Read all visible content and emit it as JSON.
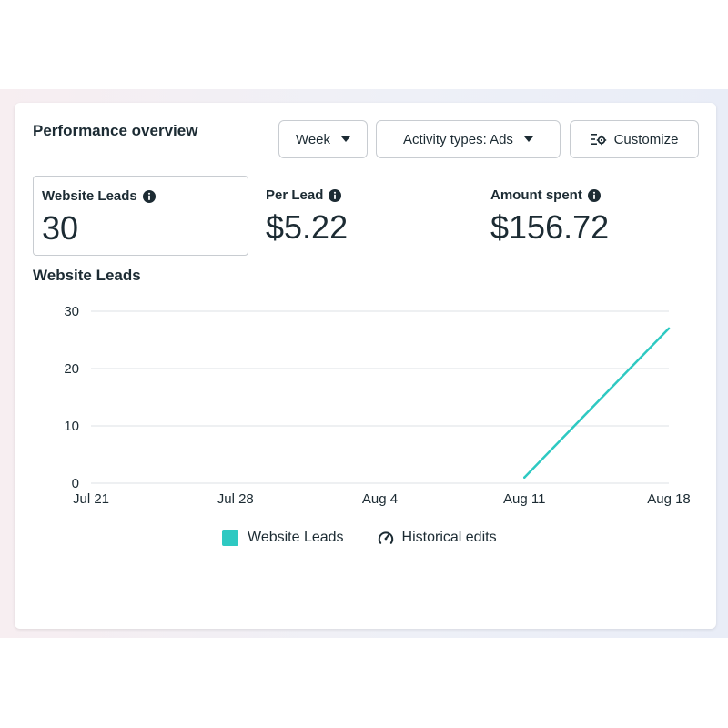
{
  "header": {
    "title": "Performance overview",
    "week_label": "Week",
    "activity_label": "Activity types: Ads",
    "customize_label": "Customize"
  },
  "metrics": [
    {
      "label": "Website Leads",
      "value": "30"
    },
    {
      "label": "Per Lead",
      "value": "$5.22"
    },
    {
      "label": "Amount spent",
      "value": "$156.72"
    }
  ],
  "chart_title": "Website Leads",
  "chart_data": {
    "type": "line",
    "title": "Website Leads",
    "xlabel": "",
    "ylabel": "",
    "categories": [
      "Jul 21",
      "Jul 28",
      "Aug 4",
      "Aug 11",
      "Aug 18"
    ],
    "yticks": [
      0,
      10,
      20,
      30
    ],
    "ylim": [
      0,
      30
    ],
    "grid": true,
    "legend_position": "bottom",
    "series": [
      {
        "name": "Website Leads",
        "color": "#2ec9c2",
        "points": [
          {
            "x": "Aug 11",
            "y": 1
          },
          {
            "x": "Aug 18",
            "y": 27
          }
        ]
      }
    ]
  },
  "legend": {
    "series_label": "Website Leads",
    "series_color": "#2ec9c2",
    "edits_label": "Historical edits",
    "edits_icon": "historical-edits-icon"
  },
  "icons": {
    "dropdown": "caret-down-icon",
    "customize": "customize-settings-icon",
    "info": "info-icon"
  }
}
